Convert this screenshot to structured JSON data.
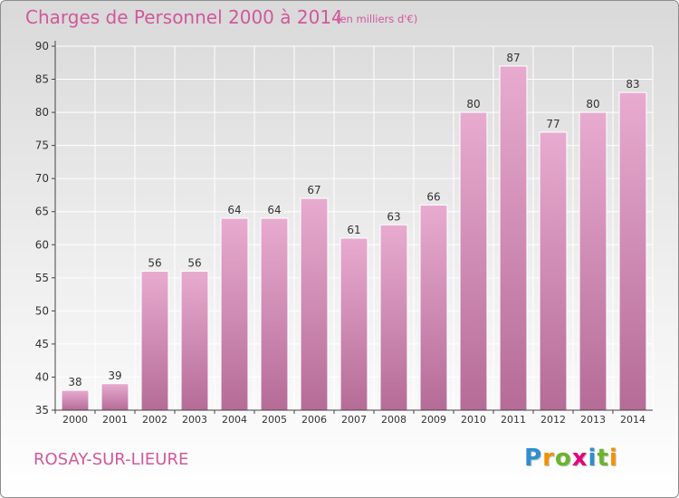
{
  "header": {
    "title": "Charges de Personnel 2000 à 2014",
    "subtitle": "(en milliers d'€)"
  },
  "footer": {
    "commune": "ROSAY-SUR-LIEURE",
    "logo": "Proxiti",
    "logo_letters": [
      {
        "char": "P",
        "color": "#2d8fd0"
      },
      {
        "char": "r",
        "color": "#f39200"
      },
      {
        "char": "o",
        "color": "#6cb42c"
      },
      {
        "char": "x",
        "color": "#e5007d"
      },
      {
        "char": "i",
        "color": "#2d8fd0"
      },
      {
        "char": "t",
        "color": "#6cb42c"
      },
      {
        "char": "i",
        "color": "#f39200"
      }
    ]
  },
  "colors": {
    "accent": "#d0589c",
    "bar_top": "#e8abd0",
    "bar_bottom": "#b56c97",
    "axis": "#444444",
    "grid": "#ffffff"
  },
  "chart_data": {
    "type": "bar",
    "categories": [
      "2000",
      "2001",
      "2002",
      "2003",
      "2004",
      "2005",
      "2006",
      "2007",
      "2008",
      "2009",
      "2010",
      "2011",
      "2012",
      "2013",
      "2014"
    ],
    "values": [
      38,
      39,
      56,
      56,
      64,
      64,
      67,
      61,
      63,
      66,
      80,
      87,
      77,
      80,
      83
    ],
    "title": "Charges de Personnel 2000 à 2014",
    "subtitle": "(en milliers d'€)",
    "xlabel": "",
    "ylabel": "",
    "ylim": [
      35,
      90
    ],
    "yticks": [
      35,
      40,
      45,
      50,
      55,
      60,
      65,
      70,
      75,
      80,
      85,
      90
    ],
    "grid": true,
    "data_labels": true
  }
}
